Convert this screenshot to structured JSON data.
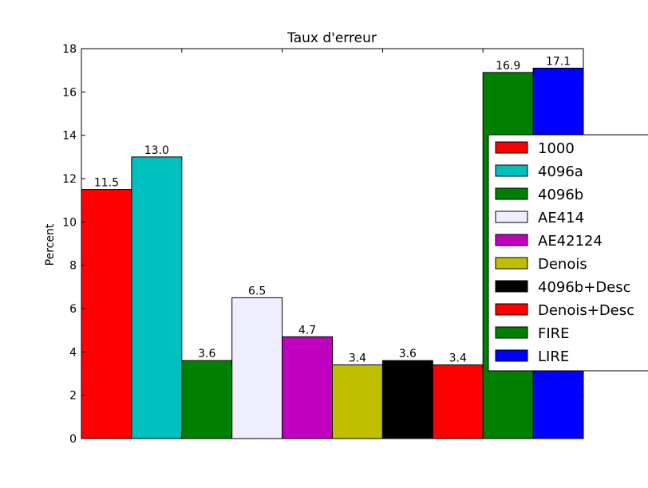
{
  "chart_data": {
    "type": "bar",
    "title": "Taux d'erreur",
    "xlabel": "",
    "ylabel": "Percent",
    "ylim": [
      0,
      18
    ],
    "yticks": [
      0,
      2,
      4,
      6,
      8,
      10,
      12,
      14,
      16,
      18
    ],
    "categories": [
      "1000",
      "4096a",
      "4096b",
      "AE414",
      "AE42124",
      "Denois",
      "4096b+Desc",
      "Denois+Desc",
      "FIRE",
      "LIRE"
    ],
    "values": [
      11.5,
      13.0,
      3.6,
      6.5,
      4.7,
      3.4,
      3.6,
      3.4,
      16.9,
      17.1
    ],
    "data_labels": [
      "11.5",
      "13.0",
      "3.6",
      "6.5",
      "4.7",
      "3.4",
      "3.6",
      "3.4",
      "16.9",
      "17.1"
    ],
    "colors": [
      "#ff0000",
      "#00bfbf",
      "#008000",
      "#eeeeff",
      "#bf00bf",
      "#bfbf00",
      "#000000",
      "#ff0000",
      "#008000",
      "#0000ff"
    ],
    "legend_position": "right",
    "grid": false
  }
}
